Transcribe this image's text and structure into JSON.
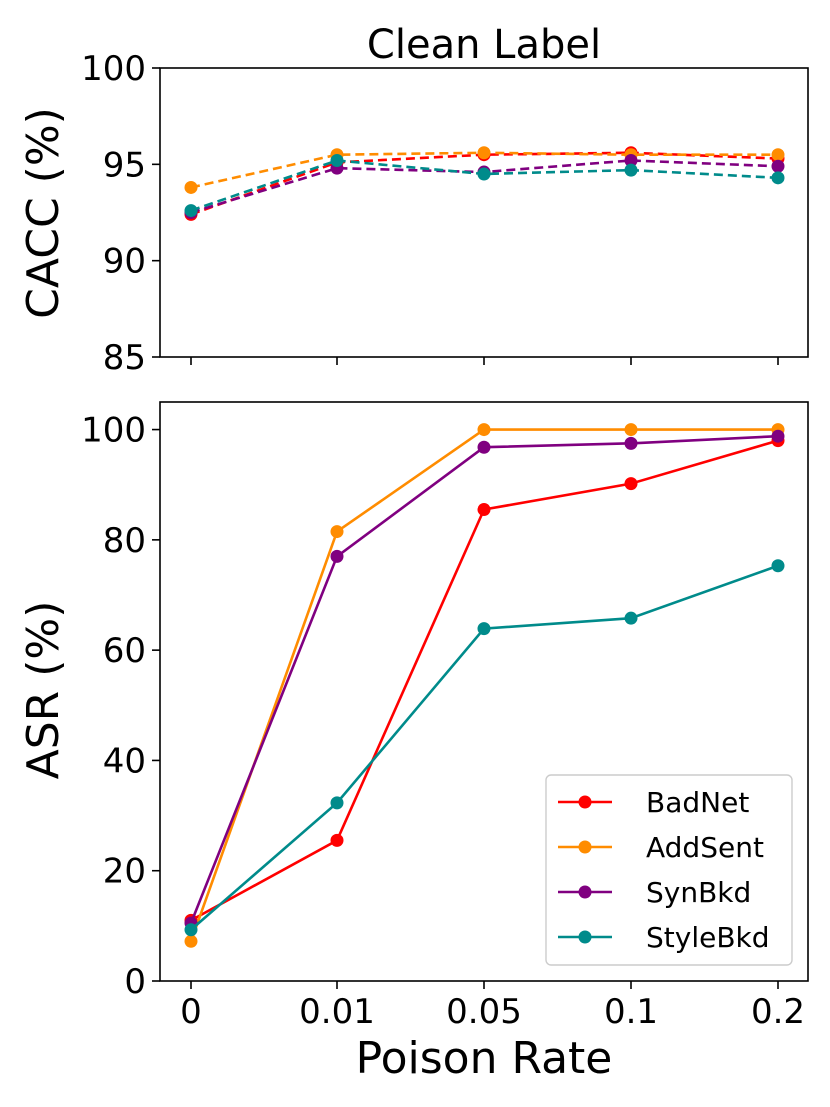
{
  "title": "Clean Label",
  "xlabel": "Poison Rate",
  "chart_data": [
    {
      "type": "line",
      "ylabel": "CACC (%)",
      "ylim": [
        85,
        100
      ],
      "yticks": [
        85,
        90,
        95,
        100
      ],
      "categories": [
        "0",
        "0.01",
        "0.05",
        "0.1",
        "0.2"
      ],
      "show_xtick_labels": false,
      "line_style": "dashed",
      "series": [
        {
          "name": "BadNet",
          "color": "#ff0000",
          "values": [
            92.4,
            95.1,
            95.5,
            95.6,
            95.3
          ]
        },
        {
          "name": "AddSent",
          "color": "#ff8c00",
          "values": [
            93.8,
            95.5,
            95.6,
            95.5,
            95.5
          ]
        },
        {
          "name": "SynBkd",
          "color": "#800080",
          "values": [
            92.5,
            94.8,
            94.6,
            95.2,
            94.9
          ]
        },
        {
          "name": "StyleBkd",
          "color": "#008b8b",
          "values": [
            92.6,
            95.2,
            94.5,
            94.7,
            94.3
          ]
        }
      ]
    },
    {
      "type": "line",
      "ylabel": "ASR (%)",
      "ylim": [
        0,
        105
      ],
      "yticks": [
        0,
        20,
        40,
        60,
        80,
        100
      ],
      "categories": [
        "0",
        "0.01",
        "0.05",
        "0.1",
        "0.2"
      ],
      "show_xtick_labels": true,
      "line_style": "solid",
      "legend_position": "lower-right",
      "series": [
        {
          "name": "BadNet",
          "color": "#ff0000",
          "values": [
            11.0,
            25.5,
            85.5,
            90.2,
            98.0
          ]
        },
        {
          "name": "AddSent",
          "color": "#ff8c00",
          "values": [
            7.2,
            81.5,
            100.0,
            100.0,
            100.0
          ]
        },
        {
          "name": "SynBkd",
          "color": "#800080",
          "values": [
            10.5,
            77.0,
            96.8,
            97.5,
            98.8
          ]
        },
        {
          "name": "StyleBkd",
          "color": "#008b8b",
          "values": [
            9.3,
            32.3,
            63.9,
            65.8,
            75.3
          ]
        }
      ]
    }
  ]
}
